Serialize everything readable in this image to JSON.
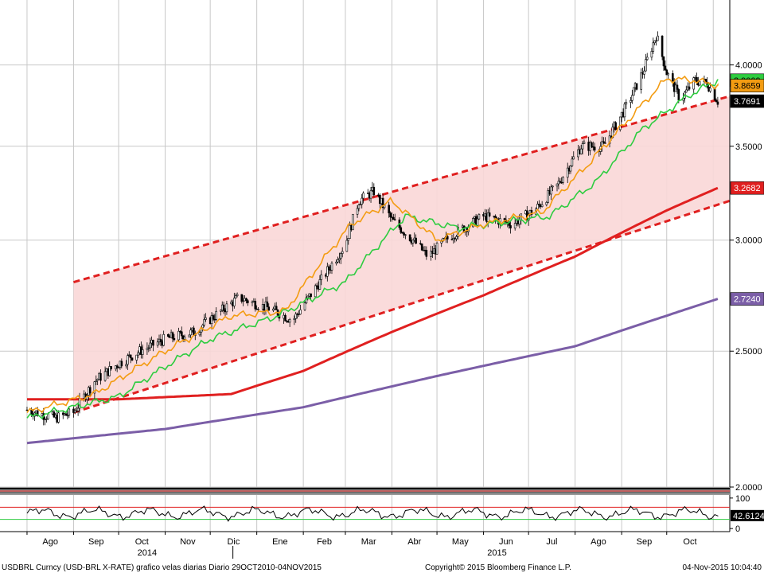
{
  "chart_data": [
    {
      "type": "line",
      "series_type": "candlestick",
      "ylim": [
        2.0,
        4.45
      ],
      "y_scale": "log",
      "grid": true,
      "y_ticks": [
        "4.0000",
        "3.5000",
        "3.0000",
        "2.5000",
        "2.0000"
      ],
      "y_tick_values": [
        4.0,
        3.5,
        3.0,
        2.5,
        2.0
      ],
      "month_labels": [
        "Ago",
        "Sep",
        "Oct",
        "Nov",
        "Dic",
        "Ene",
        "Feb",
        "Mar",
        "Abr",
        "May",
        "Jun",
        "Jul",
        "Ago",
        "Sep",
        "Oct"
      ],
      "year_labels": [
        "2014",
        "2015"
      ],
      "price_path": [
        [
          "2014-08-01",
          2.27
        ],
        [
          "2014-08-20",
          2.24
        ],
        [
          "2014-09-01",
          2.26
        ],
        [
          "2014-09-15",
          2.38
        ],
        [
          "2014-10-01",
          2.45
        ],
        [
          "2014-10-15",
          2.5
        ],
        [
          "2014-11-01",
          2.55
        ],
        [
          "2014-11-20",
          2.58
        ],
        [
          "2014-12-10",
          2.68
        ],
        [
          "2014-12-20",
          2.73
        ],
        [
          "2015-01-10",
          2.68
        ],
        [
          "2015-01-25",
          2.63
        ],
        [
          "2015-02-15",
          2.83
        ],
        [
          "2015-03-01",
          2.98
        ],
        [
          "2015-03-10",
          3.2
        ],
        [
          "2015-03-20",
          3.25
        ],
        [
          "2015-04-01",
          3.1
        ],
        [
          "2015-04-15",
          3.0
        ],
        [
          "2015-04-25",
          2.92
        ],
        [
          "2015-05-10",
          3.02
        ],
        [
          "2015-06-01",
          3.12
        ],
        [
          "2015-06-20",
          3.08
        ],
        [
          "2015-07-05",
          3.15
        ],
        [
          "2015-07-20",
          3.28
        ],
        [
          "2015-08-05",
          3.5
        ],
        [
          "2015-08-20",
          3.5
        ],
        [
          "2015-09-05",
          3.75
        ],
        [
          "2015-09-15",
          3.95
        ],
        [
          "2015-09-24",
          4.2
        ],
        [
          "2015-10-01",
          3.95
        ],
        [
          "2015-10-10",
          3.78
        ],
        [
          "2015-10-20",
          3.9
        ],
        [
          "2015-10-28",
          3.88
        ],
        [
          "2015-11-04",
          3.77
        ]
      ],
      "sma_short": [
        [
          "2014-08-01",
          2.26
        ],
        [
          "2014-09-15",
          2.33
        ],
        [
          "2014-11-01",
          2.5
        ],
        [
          "2014-12-15",
          2.65
        ],
        [
          "2015-01-20",
          2.67
        ],
        [
          "2015-03-05",
          3.08
        ],
        [
          "2015-04-01",
          3.2
        ],
        [
          "2015-05-01",
          3.0
        ],
        [
          "2015-06-01",
          3.08
        ],
        [
          "2015-07-10",
          3.14
        ],
        [
          "2015-08-10",
          3.4
        ],
        [
          "2015-09-10",
          3.7
        ],
        [
          "2015-10-01",
          3.91
        ],
        [
          "2015-10-20",
          3.9
        ],
        [
          "2015-11-04",
          3.8659
        ]
      ],
      "sma_mid": [
        [
          "2014-08-01",
          2.24
        ],
        [
          "2014-10-01",
          2.32
        ],
        [
          "2014-12-01",
          2.55
        ],
        [
          "2015-01-15",
          2.65
        ],
        [
          "2015-03-01",
          2.8
        ],
        [
          "2015-04-10",
          3.12
        ],
        [
          "2015-05-15",
          3.06
        ],
        [
          "2015-07-15",
          3.12
        ],
        [
          "2015-08-15",
          3.3
        ],
        [
          "2015-09-15",
          3.6
        ],
        [
          "2015-10-15",
          3.8
        ],
        [
          "2015-11-04",
          3.9009
        ]
      ],
      "sma_long": [
        [
          "2014-08-01",
          2.31
        ],
        [
          "2014-10-01",
          2.31
        ],
        [
          "2014-12-15",
          2.33
        ],
        [
          "2015-02-01",
          2.42
        ],
        [
          "2015-04-01",
          2.58
        ],
        [
          "2015-06-01",
          2.74
        ],
        [
          "2015-08-01",
          2.92
        ],
        [
          "2015-10-01",
          3.15
        ],
        [
          "2015-11-04",
          3.2682
        ]
      ],
      "sma_longest": [
        [
          "2014-08-01",
          2.15
        ],
        [
          "2014-11-01",
          2.2
        ],
        [
          "2015-02-01",
          2.28
        ],
        [
          "2015-05-01",
          2.4
        ],
        [
          "2015-08-01",
          2.52
        ],
        [
          "2015-10-01",
          2.65
        ],
        [
          "2015-11-04",
          2.724
        ]
      ],
      "channel_upper": [
        [
          "2014-09-01",
          2.8
        ],
        [
          "2015-11-12",
          3.8
        ]
      ],
      "channel_lower": [
        [
          "2014-09-01",
          2.26
        ],
        [
          "2015-11-12",
          3.2
        ]
      ],
      "value_labels": [
        {
          "text": "3.9009",
          "value": 3.9009,
          "bg": "#2ecc40",
          "fg": "#000000"
        },
        {
          "text": "3.8659",
          "value": 3.8659,
          "bg": "#f39c12",
          "fg": "#000000"
        },
        {
          "text": "3.7691",
          "value": 3.7691,
          "bg": "#000000",
          "fg": "#ffffff"
        },
        {
          "text": "3.2682",
          "value": 3.2682,
          "bg": "#e02020",
          "fg": "#ffffff"
        },
        {
          "text": "2.7240",
          "value": 2.724,
          "bg": "#7b5ea7",
          "fg": "#ffffff"
        }
      ]
    },
    {
      "type": "line",
      "ylim": [
        -10,
        110
      ],
      "y_ticks": [
        "100",
        "0"
      ],
      "y_tick_values": [
        100,
        0
      ],
      "overbought_level": 70,
      "oversold_level": 30,
      "last_value_label": "42.6124",
      "last_value": 42.6124
    }
  ],
  "footer": {
    "left": "USDBRL Curncy (USD-BRL X-RATE) grafico velas diarias  Diario 29OCT2010-04NOV2015",
    "center": "Copyright© 2015 Bloomberg Finance L.P.",
    "right": "04-Nov-2015 10:04:40"
  },
  "colors": {
    "channel_fill": "#f9d7d7",
    "channel_line": "#e02020",
    "sma_short": "#f39c12",
    "sma_mid": "#2ecc40",
    "sma_long": "#e02020",
    "sma_longest": "#7b5ea7",
    "grid": "#c8c8c8"
  }
}
